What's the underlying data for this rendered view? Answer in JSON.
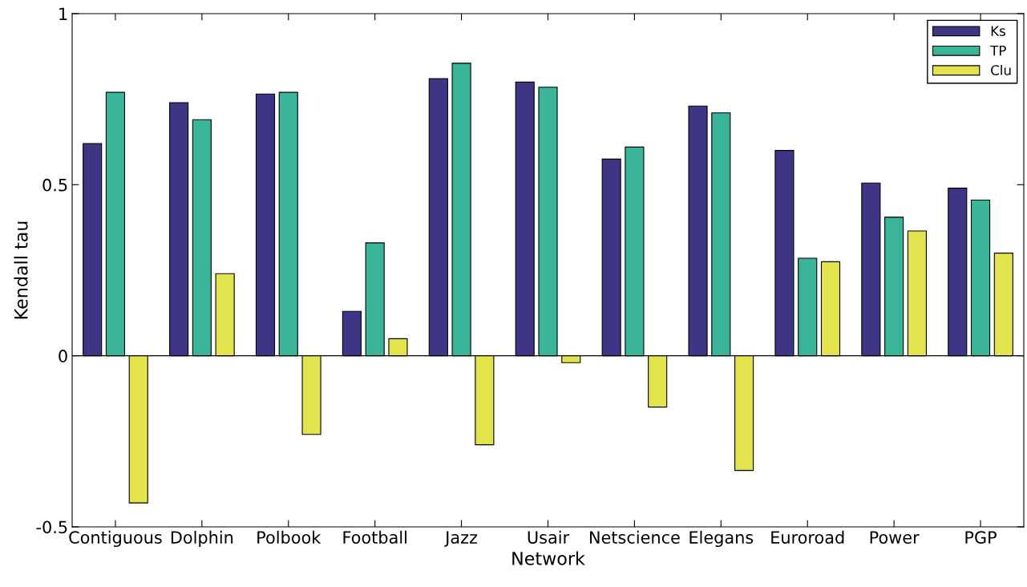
{
  "chart_data": {
    "type": "bar",
    "xlabel": "Network",
    "ylabel": "Kendall tau",
    "categories": [
      "Contiguous",
      "Dolphin",
      "Polbook",
      "Football",
      "Jazz",
      "Usair",
      "Netscience",
      "Elegans",
      "Euroroad",
      "Power",
      "PGP"
    ],
    "series": [
      {
        "name": "Ks",
        "color": "#3e3585",
        "values": [
          0.62,
          0.74,
          0.765,
          0.13,
          0.81,
          0.8,
          0.575,
          0.73,
          0.6,
          0.505,
          0.49
        ]
      },
      {
        "name": "TP",
        "color": "#3ab59a",
        "values": [
          0.77,
          0.69,
          0.77,
          0.33,
          0.855,
          0.785,
          0.61,
          0.71,
          0.285,
          0.405,
          0.455
        ]
      },
      {
        "name": "Clu",
        "color": "#e3e34e",
        "values": [
          -0.43,
          0.24,
          -0.23,
          0.05,
          -0.26,
          -0.02,
          -0.15,
          -0.335,
          0.275,
          0.365,
          0.3
        ]
      }
    ],
    "ylim": [
      -0.5,
      1
    ],
    "yticks": [
      -0.5,
      0,
      0.5,
      1
    ],
    "ref_lines": [
      {
        "axis": "y",
        "value": 0,
        "color": "#000000"
      }
    ],
    "legend": "top right"
  }
}
